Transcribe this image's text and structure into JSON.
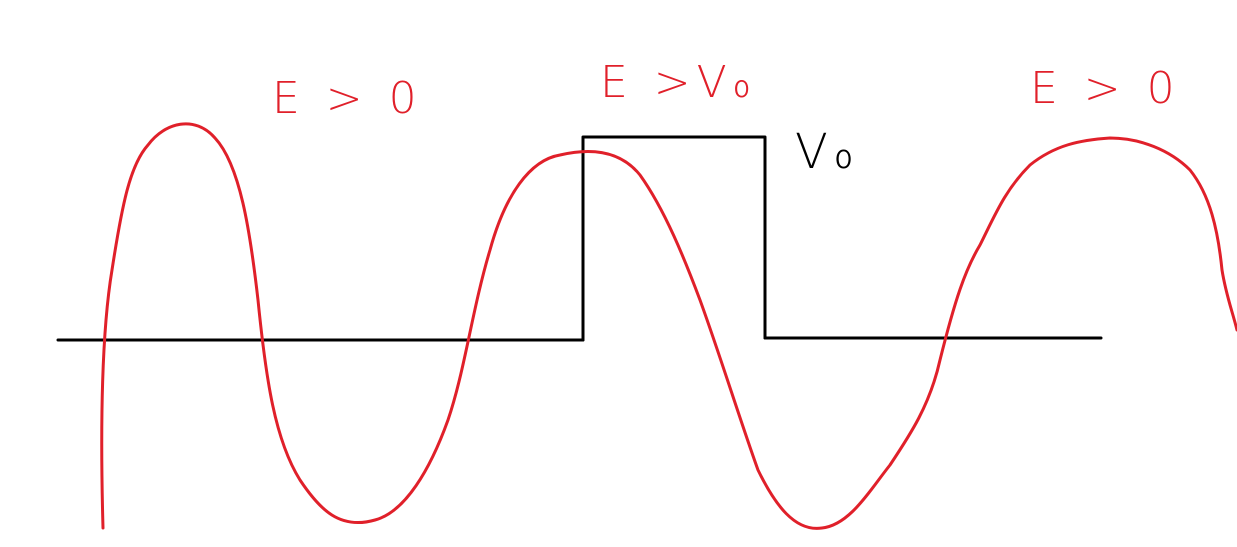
{
  "diagram": {
    "labels": {
      "left_region": "E > 0",
      "barrier_region": "E >V₀",
      "right_region": "E > 0",
      "barrier_height": "V₀"
    },
    "colors": {
      "wave": "#e0202a",
      "potential": "#000000",
      "background": "#ffffff"
    }
  }
}
